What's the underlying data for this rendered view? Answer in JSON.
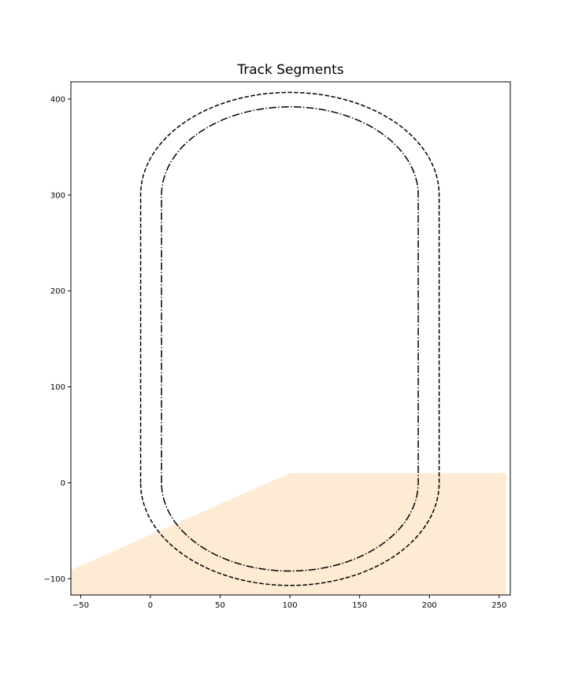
{
  "chart_data": {
    "type": "line",
    "title": "Track Segments",
    "xlabel": "",
    "ylabel": "",
    "xlim": [
      -57,
      258
    ],
    "ylim": [
      -117,
      418
    ],
    "grid": false,
    "legend": "none",
    "x_ticks": [
      -50,
      0,
      50,
      100,
      150,
      200,
      250
    ],
    "y_ticks": [
      -100,
      0,
      100,
      200,
      300,
      400
    ],
    "filled_regions": [
      {
        "fill_color": "#fdebd4",
        "points": [
          [
            -57,
            -91
          ],
          [
            100,
            10
          ],
          [
            255,
            10
          ],
          [
            255,
            -117
          ],
          [
            -57,
            -117
          ]
        ]
      }
    ],
    "tracks": [
      {
        "line_style": "dashed",
        "color": "#000000",
        "straight_x": [
          -7,
          207
        ],
        "straight_y": [
          0,
          300
        ],
        "arc_radius": 107,
        "arc_center_x": 100
      },
      {
        "line_style": "dashdot",
        "color": "#000000",
        "straight_x": [
          8,
          192
        ],
        "straight_y": [
          0,
          300
        ],
        "arc_radius": 92,
        "arc_center_x": 100
      }
    ]
  }
}
